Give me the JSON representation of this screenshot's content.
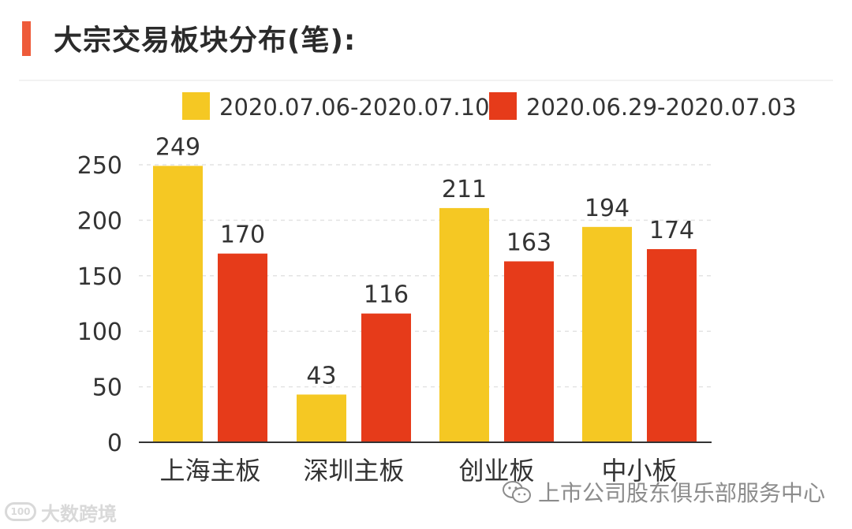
{
  "title": "大宗交易板块分布(笔):",
  "colors": {
    "accent": "#ee5b3a",
    "series1": "#f5c823",
    "series2": "#e63b1a"
  },
  "chart_data": {
    "type": "bar",
    "categories": [
      "上海主板",
      "深圳主板",
      "创业板",
      "中小板"
    ],
    "series": [
      {
        "name": "2020.07.06-2020.07.10",
        "values": [
          249,
          43,
          211,
          194
        ]
      },
      {
        "name": "2020.06.29-2020.07.03",
        "values": [
          170,
          116,
          163,
          174
        ]
      }
    ],
    "yticks": [
      0,
      50,
      100,
      150,
      200,
      250
    ],
    "ylim": [
      0,
      250
    ],
    "grid": true,
    "legend": "top",
    "data_labels": true
  },
  "watermark": {
    "brand": "大数跨境",
    "logo_text": "100"
  },
  "source": {
    "icon": "wechat-icon",
    "text": "上市公司股东俱乐部服务中心"
  }
}
